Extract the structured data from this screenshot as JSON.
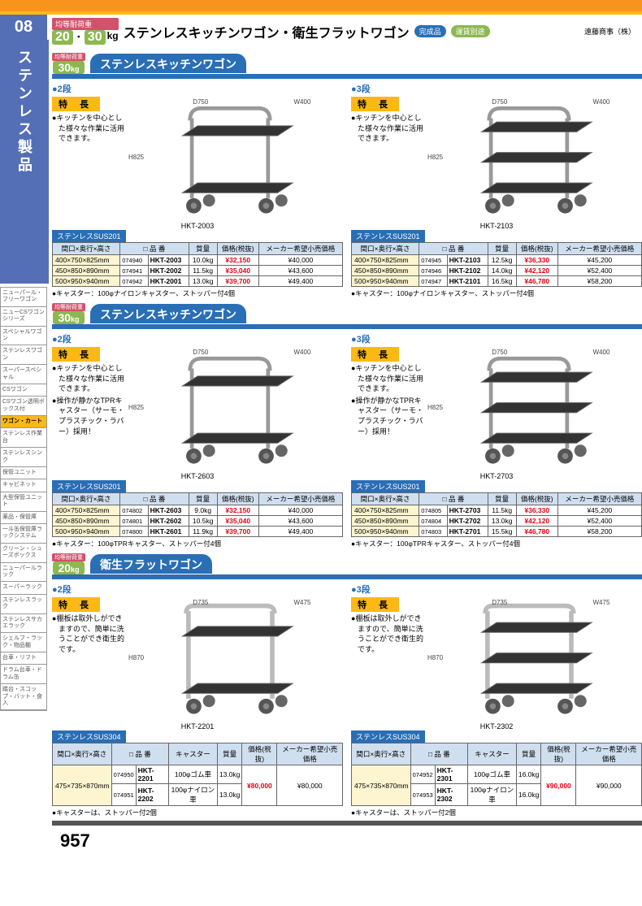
{
  "header": {
    "load_label": "均等耐荷重",
    "load_vals": [
      "20",
      "30"
    ],
    "load_unit": "kg",
    "title": "ステンレスキッチンワゴン・衛生フラットワゴン",
    "tag_done": "完成品",
    "tag_ship": "運賃別途",
    "company": "遠藤商事（株）"
  },
  "sidebar": {
    "num": "08",
    "title": "ステンレス製品",
    "items": [
      "ニューパール・フリーワゴン",
      "ニューCSワゴンシリーズ",
      "スペシャルワゴン",
      "ステンレスワゴン",
      "スーパースペシャル",
      "CSワゴン",
      "CSワゴン透明ボックス付",
      "ワゴン・カート",
      "ステンレス作業台",
      "ステンレスシンク",
      "保管ユニット",
      "キャビネット",
      "大型保管ユニット",
      "薬品・保管庫",
      "一斗缶保管庫ラックシステム",
      "クリーン・シューズボックス",
      "ニューパールラック",
      "スーパーラック",
      "ステンレスラック",
      "ステンレスサカエラック",
      "シェルフ・ラック・物品棚",
      "台車・リフト",
      "ドラム台車・ドラム缶",
      "踏台・スコップ・バット・食入"
    ],
    "active_index": 7
  },
  "sections": [
    {
      "load": "30",
      "load_unit": "kg",
      "title": "ステンレスキッチンワゴン",
      "products": [
        {
          "tier": "2段",
          "feat": [
            "キッチンを中心とした様々な作業に活用できます。"
          ],
          "dims": {
            "D": "D750",
            "W": "W400",
            "H": "H825"
          },
          "model": "HKT-2003",
          "shelves": 2,
          "material": "ステンレスSUS201",
          "cols": [
            "間口×奥行×高さ",
            "□ 品 番",
            "",
            "質量",
            "価格(税抜)",
            "メーカー希望小売価格"
          ],
          "rows": [
            [
              "400×750×825mm",
              "074940",
              "HKT-2003",
              "10.0kg",
              "¥32,150",
              "¥40,000"
            ],
            [
              "450×850×890mm",
              "074941",
              "HKT-2002",
              "11.5kg",
              "¥35,040",
              "¥43,600"
            ],
            [
              "500×950×940mm",
              "074942",
              "HKT-2001",
              "13.0kg",
              "¥39,700",
              "¥49,400"
            ]
          ],
          "note": "キャスター：100φナイロンキャスター、ストッパー付4個"
        },
        {
          "tier": "3段",
          "feat": [
            "キッチンを中心とした様々な作業に活用できます。"
          ],
          "dims": {
            "D": "D750",
            "W": "W400",
            "H": "H825"
          },
          "model": "HKT-2103",
          "shelves": 3,
          "material": "ステンレスSUS201",
          "cols": [
            "間口×奥行×高さ",
            "□ 品 番",
            "",
            "質量",
            "価格(税抜)",
            "メーカー希望小売価格"
          ],
          "rows": [
            [
              "400×750×825mm",
              "074945",
              "HKT-2103",
              "12.5kg",
              "¥36,330",
              "¥45,200"
            ],
            [
              "450×850×890mm",
              "074946",
              "HKT-2102",
              "14.0kg",
              "¥42,120",
              "¥52,400"
            ],
            [
              "500×950×940mm",
              "074947",
              "HKT-2101",
              "16.5kg",
              "¥46,780",
              "¥58,200"
            ]
          ],
          "note": "キャスター：100φナイロンキャスター、ストッパー付4個"
        }
      ]
    },
    {
      "load": "30",
      "load_unit": "kg",
      "title": "ステンレスキッチンワゴン",
      "products": [
        {
          "tier": "2段",
          "feat": [
            "キッチンを中心とした様々な作業に活用できます。",
            "操作が静かなTPRキャスター（サーモ・プラスチック・ラバー）採用！"
          ],
          "dims": {
            "D": "D750",
            "W": "W400",
            "H": "H825"
          },
          "model": "HKT-2603",
          "shelves": 2,
          "material": "ステンレスSUS201",
          "cols": [
            "間口×奥行×高さ",
            "□ 品 番",
            "",
            "質量",
            "価格(税抜)",
            "メーカー希望小売価格"
          ],
          "rows": [
            [
              "400×750×825mm",
              "074802",
              "HKT-2603",
              "9.0kg",
              "¥32,150",
              "¥40,000"
            ],
            [
              "450×850×890mm",
              "074801",
              "HKT-2602",
              "10.5kg",
              "¥35,040",
              "¥43,600"
            ],
            [
              "500×950×940mm",
              "074800",
              "HKT-2601",
              "11.9kg",
              "¥39,700",
              "¥49,400"
            ]
          ],
          "note": "キャスター：100φTPRキャスター、ストッパー付4個"
        },
        {
          "tier": "3段",
          "feat": [
            "キッチンを中心とした様々な作業に活用できます。",
            "操作が静かなTPRキャスター（サーモ・プラスチック・ラバー）採用！"
          ],
          "dims": {
            "D": "D750",
            "W": "W400",
            "H": "H825"
          },
          "model": "HKT-2703",
          "shelves": 3,
          "material": "ステンレスSUS201",
          "cols": [
            "間口×奥行×高さ",
            "□ 品 番",
            "",
            "質量",
            "価格(税抜)",
            "メーカー希望小売価格"
          ],
          "rows": [
            [
              "400×750×825mm",
              "074805",
              "HKT-2703",
              "11.5kg",
              "¥36,330",
              "¥45,200"
            ],
            [
              "450×850×890mm",
              "074804",
              "HKT-2702",
              "13.0kg",
              "¥42,120",
              "¥52,400"
            ],
            [
              "500×950×940mm",
              "074803",
              "HKT-2701",
              "15.5kg",
              "¥46,780",
              "¥58,200"
            ]
          ],
          "note": "キャスター：100φTPRキャスター、ストッパー付4個"
        }
      ]
    },
    {
      "load": "20",
      "load_unit": "kg",
      "title": "衛生フラットワゴン",
      "products": [
        {
          "tier": "2段",
          "feat": [
            "棚板は取外しができますので、簡単に洗うことができ衛生的です。"
          ],
          "dims": {
            "D": "D735",
            "W": "W475",
            "H": "H870"
          },
          "model": "HKT-2201",
          "shelves": 2,
          "material": "ステンレスSUS304",
          "flat": true,
          "cols": [
            "間口×奥行×高さ",
            "□ 品 番",
            "",
            "キャスター",
            "質量",
            "価格(税抜)",
            "メーカー希望小売価格"
          ],
          "rows": [
            [
              "475×735×870mm",
              "074950",
              "HKT-2201",
              "100φゴム車",
              "13.0kg",
              "¥80,000",
              "¥80,000"
            ],
            [
              "",
              "074951",
              "HKT-2202",
              "100φナイロン車",
              "13.0kg",
              "",
              ""
            ]
          ],
          "merge_dim": true,
          "merge_price": true,
          "note": "キャスターは、ストッパー付2個"
        },
        {
          "tier": "3段",
          "feat": [
            "棚板は取外しができますので、簡単に洗うことができ衛生的です。"
          ],
          "dims": {
            "D": "D735",
            "W": "W475",
            "H": "H870"
          },
          "model": "HKT-2302",
          "shelves": 3,
          "material": "ステンレスSUS304",
          "flat": true,
          "cols": [
            "間口×奥行×高さ",
            "□ 品 番",
            "",
            "キャスター",
            "質量",
            "価格(税抜)",
            "メーカー希望小売価格"
          ],
          "rows": [
            [
              "475×735×870mm",
              "074952",
              "HKT-2301",
              "100φゴム車",
              "16.0kg",
              "¥90,000",
              "¥90,000"
            ],
            [
              "",
              "074953",
              "HKT-2302",
              "100φナイロン車",
              "16.0kg",
              "",
              ""
            ]
          ],
          "merge_dim": true,
          "merge_price": true,
          "note": "キャスターは、ストッパー付2個"
        }
      ]
    }
  ],
  "page_num": "957",
  "colors": {
    "blue": "#2a6eb5",
    "green": "#8cb850",
    "orange": "#fdb813",
    "red": "#e60012",
    "pink": "#d4516b",
    "side": "#546fb5"
  }
}
